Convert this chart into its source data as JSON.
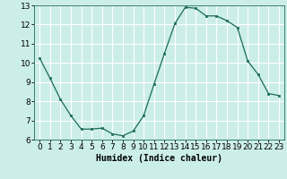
{
  "x": [
    0,
    1,
    2,
    3,
    4,
    5,
    6,
    7,
    8,
    9,
    10,
    11,
    12,
    13,
    14,
    15,
    16,
    17,
    18,
    19,
    20,
    21,
    22,
    23
  ],
  "y": [
    10.25,
    9.2,
    8.1,
    7.25,
    6.55,
    6.55,
    6.6,
    6.3,
    6.2,
    6.45,
    7.25,
    8.9,
    10.5,
    12.05,
    12.9,
    12.85,
    12.45,
    12.45,
    12.2,
    11.85,
    10.1,
    9.4,
    8.4,
    8.3
  ],
  "line_color": "#1a6b5a",
  "marker_color": "#1a6b5a",
  "bg_color": "#cceee8",
  "grid_color": "#ffffff",
  "xlabel": "Humidex (Indice chaleur)",
  "ylim": [
    6,
    13
  ],
  "xlim_min": -0.5,
  "xlim_max": 23.5,
  "yticks": [
    6,
    7,
    8,
    9,
    10,
    11,
    12,
    13
  ],
  "xticks": [
    0,
    1,
    2,
    3,
    4,
    5,
    6,
    7,
    8,
    9,
    10,
    11,
    12,
    13,
    14,
    15,
    16,
    17,
    18,
    19,
    20,
    21,
    22,
    23
  ],
  "xlabel_fontsize": 7,
  "tick_fontsize": 6.5
}
